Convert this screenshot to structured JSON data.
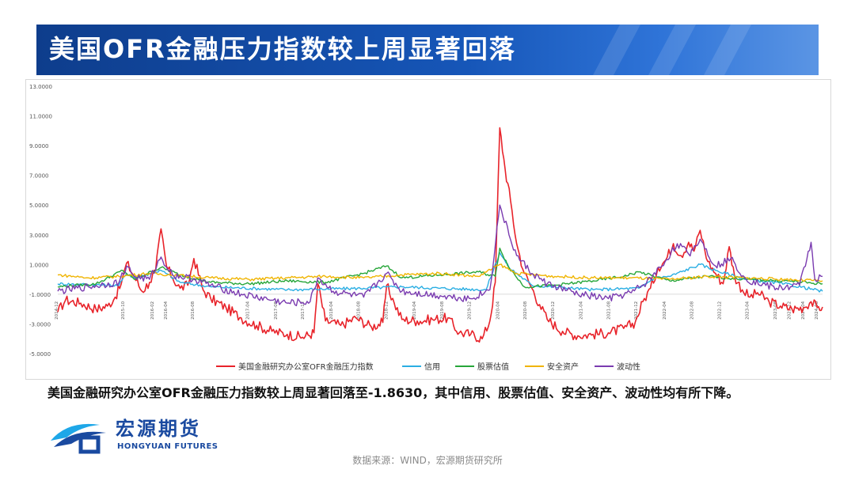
{
  "header": {
    "title": "美国OFR金融压力指数较上周显著回落"
  },
  "caption": "美国金融研究办公室OFR金融压力指数较上周显著回落至-1.8630，其中信用、股票估值、安全资产、波动性均有所下降。",
  "logo": {
    "name_cn": "宏源期货",
    "name_en": "HONGYUAN FUTURES"
  },
  "source": "数据来源：WIND，宏源期货研究所",
  "colors": {
    "title_bg": "#1656b8",
    "brand": "#1a4aa0"
  },
  "chart_data": {
    "type": "line",
    "ylim": [
      -5,
      13
    ],
    "yticks": [
      "-5.0000",
      "-3.0000",
      "-1.0000",
      "1.0000",
      "3.0000",
      "5.0000",
      "7.0000",
      "9.0000",
      "11.0000",
      "13.0000"
    ],
    "ytick_values": [
      -5,
      -3,
      -1,
      1,
      3,
      5,
      7,
      9,
      11,
      13
    ],
    "x_tick_labels": [
      "2014-12",
      "2015-10",
      "2016-02",
      "2016-04",
      "2016-08",
      "2017-04",
      "2017-08",
      "2017-12",
      "2018-04",
      "2018-08",
      "2018-12",
      "2019-04",
      "2019-08",
      "2019-12",
      "2020-04",
      "2020-08",
      "2020-12",
      "2021-04",
      "2021-08",
      "2021-12",
      "2022-04",
      "2022-08",
      "2022-12",
      "2023-04",
      "2023-08",
      "2023-12",
      "2024-04",
      "2024-08"
    ],
    "x_tick_pos": [
      0.0,
      0.087,
      0.125,
      0.143,
      0.178,
      0.25,
      0.287,
      0.322,
      0.359,
      0.395,
      0.431,
      0.468,
      0.504,
      0.54,
      0.577,
      0.613,
      0.649,
      0.686,
      0.722,
      0.758,
      0.795,
      0.831,
      0.867,
      0.903,
      0.94,
      0.958,
      0.976,
      0.994
    ],
    "legend_position": "bottom",
    "grid": false,
    "last_value": -1.863,
    "series": [
      {
        "name": "美国金融研究办公室OFR金融压力指数",
        "color": "#e8232a",
        "points": [
          [
            0.0,
            -2.2
          ],
          [
            0.01,
            -1.4
          ],
          [
            0.03,
            -1.6
          ],
          [
            0.05,
            -2.0
          ],
          [
            0.065,
            -1.8
          ],
          [
            0.075,
            -1.2
          ],
          [
            0.083,
            -0.3
          ],
          [
            0.09,
            1.1
          ],
          [
            0.1,
            0.2
          ],
          [
            0.11,
            -0.8
          ],
          [
            0.12,
            -0.2
          ],
          [
            0.128,
            0.6
          ],
          [
            0.135,
            3.4
          ],
          [
            0.142,
            0.9
          ],
          [
            0.15,
            0.1
          ],
          [
            0.16,
            -0.6
          ],
          [
            0.17,
            -0.4
          ],
          [
            0.178,
            1.4
          ],
          [
            0.19,
            -0.7
          ],
          [
            0.2,
            -1.3
          ],
          [
            0.22,
            -1.9
          ],
          [
            0.24,
            -2.6
          ],
          [
            0.26,
            -3.1
          ],
          [
            0.28,
            -3.5
          ],
          [
            0.3,
            -3.7
          ],
          [
            0.32,
            -3.9
          ],
          [
            0.335,
            -3.6
          ],
          [
            0.34,
            -0.3
          ],
          [
            0.35,
            -2.8
          ],
          [
            0.37,
            -3.1
          ],
          [
            0.39,
            -2.6
          ],
          [
            0.41,
            -3.2
          ],
          [
            0.425,
            -2.9
          ],
          [
            0.43,
            -0.4
          ],
          [
            0.44,
            -1.6
          ],
          [
            0.45,
            -2.7
          ],
          [
            0.47,
            -2.8
          ],
          [
            0.49,
            -2.7
          ],
          [
            0.51,
            -2.6
          ],
          [
            0.525,
            -3.6
          ],
          [
            0.54,
            -3.7
          ],
          [
            0.555,
            -4.0
          ],
          [
            0.565,
            -2.8
          ],
          [
            0.572,
            -0.2
          ],
          [
            0.578,
            10.2
          ],
          [
            0.585,
            7.4
          ],
          [
            0.592,
            5.3
          ],
          [
            0.6,
            2.4
          ],
          [
            0.61,
            0.4
          ],
          [
            0.62,
            -0.6
          ],
          [
            0.63,
            -1.7
          ],
          [
            0.64,
            -2.7
          ],
          [
            0.66,
            -3.5
          ],
          [
            0.68,
            -3.8
          ],
          [
            0.7,
            -3.7
          ],
          [
            0.72,
            -3.6
          ],
          [
            0.74,
            -3.3
          ],
          [
            0.755,
            -2.9
          ],
          [
            0.765,
            -1.5
          ],
          [
            0.775,
            -0.6
          ],
          [
            0.785,
            0.8
          ],
          [
            0.795,
            1.3
          ],
          [
            0.805,
            2.4
          ],
          [
            0.815,
            1.6
          ],
          [
            0.825,
            2.5
          ],
          [
            0.832,
            1.9
          ],
          [
            0.84,
            3.3
          ],
          [
            0.85,
            1.2
          ],
          [
            0.86,
            0.4
          ],
          [
            0.87,
            -0.3
          ],
          [
            0.878,
            2.2
          ],
          [
            0.885,
            0.2
          ],
          [
            0.895,
            -0.7
          ],
          [
            0.905,
            -1.2
          ],
          [
            0.915,
            -0.9
          ],
          [
            0.93,
            -1.5
          ],
          [
            0.945,
            -1.8
          ],
          [
            0.96,
            -2.0
          ],
          [
            0.975,
            -1.9
          ],
          [
            0.985,
            -1.5
          ],
          [
            0.993,
            -1.9
          ],
          [
            1.0,
            -1.86
          ]
        ]
      },
      {
        "name": "信用",
        "color": "#2aaee3",
        "points": [
          [
            0.0,
            -0.3
          ],
          [
            0.08,
            -0.4
          ],
          [
            0.09,
            0.4
          ],
          [
            0.1,
            0.1
          ],
          [
            0.135,
            0.6
          ],
          [
            0.16,
            -0.2
          ],
          [
            0.2,
            -0.5
          ],
          [
            0.3,
            -0.7
          ],
          [
            0.4,
            -0.6
          ],
          [
            0.45,
            -0.5
          ],
          [
            0.5,
            -0.6
          ],
          [
            0.56,
            -0.7
          ],
          [
            0.578,
            1.8
          ],
          [
            0.59,
            0.8
          ],
          [
            0.62,
            -0.4
          ],
          [
            0.7,
            -0.7
          ],
          [
            0.76,
            -0.6
          ],
          [
            0.78,
            0.1
          ],
          [
            0.8,
            0.2
          ],
          [
            0.84,
            1.0
          ],
          [
            0.86,
            0.6
          ],
          [
            0.9,
            0.0
          ],
          [
            0.95,
            -0.3
          ],
          [
            1.0,
            -0.8
          ]
        ]
      },
      {
        "name": "股票估值",
        "color": "#27a639",
        "points": [
          [
            0.0,
            -0.5
          ],
          [
            0.05,
            -0.3
          ],
          [
            0.085,
            0.6
          ],
          [
            0.1,
            0.0
          ],
          [
            0.135,
            0.8
          ],
          [
            0.16,
            0.3
          ],
          [
            0.2,
            -0.2
          ],
          [
            0.25,
            -0.3
          ],
          [
            0.3,
            -0.1
          ],
          [
            0.35,
            -0.2
          ],
          [
            0.4,
            0.4
          ],
          [
            0.43,
            0.9
          ],
          [
            0.45,
            0.1
          ],
          [
            0.5,
            0.3
          ],
          [
            0.55,
            0.5
          ],
          [
            0.572,
            0.2
          ],
          [
            0.578,
            2.1
          ],
          [
            0.59,
            0.8
          ],
          [
            0.61,
            -0.5
          ],
          [
            0.65,
            -0.4
          ],
          [
            0.7,
            -0.1
          ],
          [
            0.74,
            0.2
          ],
          [
            0.76,
            0.5
          ],
          [
            0.8,
            -0.1
          ],
          [
            0.85,
            0.2
          ],
          [
            0.9,
            0.0
          ],
          [
            0.95,
            -0.1
          ],
          [
            1.0,
            -0.3
          ]
        ]
      },
      {
        "name": "安全资产",
        "color": "#f0b400",
        "points": [
          [
            0.0,
            0.3
          ],
          [
            0.04,
            0.1
          ],
          [
            0.08,
            0.2
          ],
          [
            0.12,
            0.4
          ],
          [
            0.15,
            0.3
          ],
          [
            0.2,
            0.1
          ],
          [
            0.25,
            0.0
          ],
          [
            0.3,
            0.1
          ],
          [
            0.35,
            0.2
          ],
          [
            0.4,
            0.1
          ],
          [
            0.45,
            0.3
          ],
          [
            0.5,
            0.4
          ],
          [
            0.55,
            0.2
          ],
          [
            0.578,
            1.0
          ],
          [
            0.6,
            0.4
          ],
          [
            0.65,
            0.2
          ],
          [
            0.7,
            0.1
          ],
          [
            0.75,
            0.1
          ],
          [
            0.8,
            0.0
          ],
          [
            0.85,
            0.2
          ],
          [
            0.9,
            0.1
          ],
          [
            0.95,
            0.0
          ],
          [
            1.0,
            -0.1
          ]
        ]
      },
      {
        "name": "波动性",
        "color": "#7a3bb0",
        "points": [
          [
            0.0,
            -0.8
          ],
          [
            0.04,
            -0.5
          ],
          [
            0.08,
            -0.2
          ],
          [
            0.09,
            0.9
          ],
          [
            0.1,
            0.2
          ],
          [
            0.12,
            0.0
          ],
          [
            0.135,
            1.5
          ],
          [
            0.15,
            0.3
          ],
          [
            0.18,
            0.0
          ],
          [
            0.2,
            -0.4
          ],
          [
            0.24,
            -1.0
          ],
          [
            0.28,
            -1.4
          ],
          [
            0.3,
            -1.6
          ],
          [
            0.33,
            -1.5
          ],
          [
            0.34,
            0.1
          ],
          [
            0.36,
            -0.8
          ],
          [
            0.4,
            -1.2
          ],
          [
            0.43,
            0.4
          ],
          [
            0.45,
            -0.8
          ],
          [
            0.5,
            -1.1
          ],
          [
            0.54,
            -1.3
          ],
          [
            0.565,
            -0.7
          ],
          [
            0.578,
            5.0
          ],
          [
            0.59,
            3.0
          ],
          [
            0.6,
            1.6
          ],
          [
            0.62,
            0.4
          ],
          [
            0.64,
            -0.3
          ],
          [
            0.68,
            -1.0
          ],
          [
            0.72,
            -1.3
          ],
          [
            0.75,
            -0.9
          ],
          [
            0.77,
            -0.2
          ],
          [
            0.79,
            0.9
          ],
          [
            0.81,
            2.4
          ],
          [
            0.825,
            1.7
          ],
          [
            0.84,
            2.7
          ],
          [
            0.86,
            0.9
          ],
          [
            0.88,
            1.4
          ],
          [
            0.9,
            0.0
          ],
          [
            0.94,
            -0.6
          ],
          [
            0.97,
            -0.4
          ],
          [
            0.985,
            2.5
          ],
          [
            0.99,
            0.0
          ],
          [
            1.0,
            0.2
          ]
        ]
      }
    ]
  }
}
